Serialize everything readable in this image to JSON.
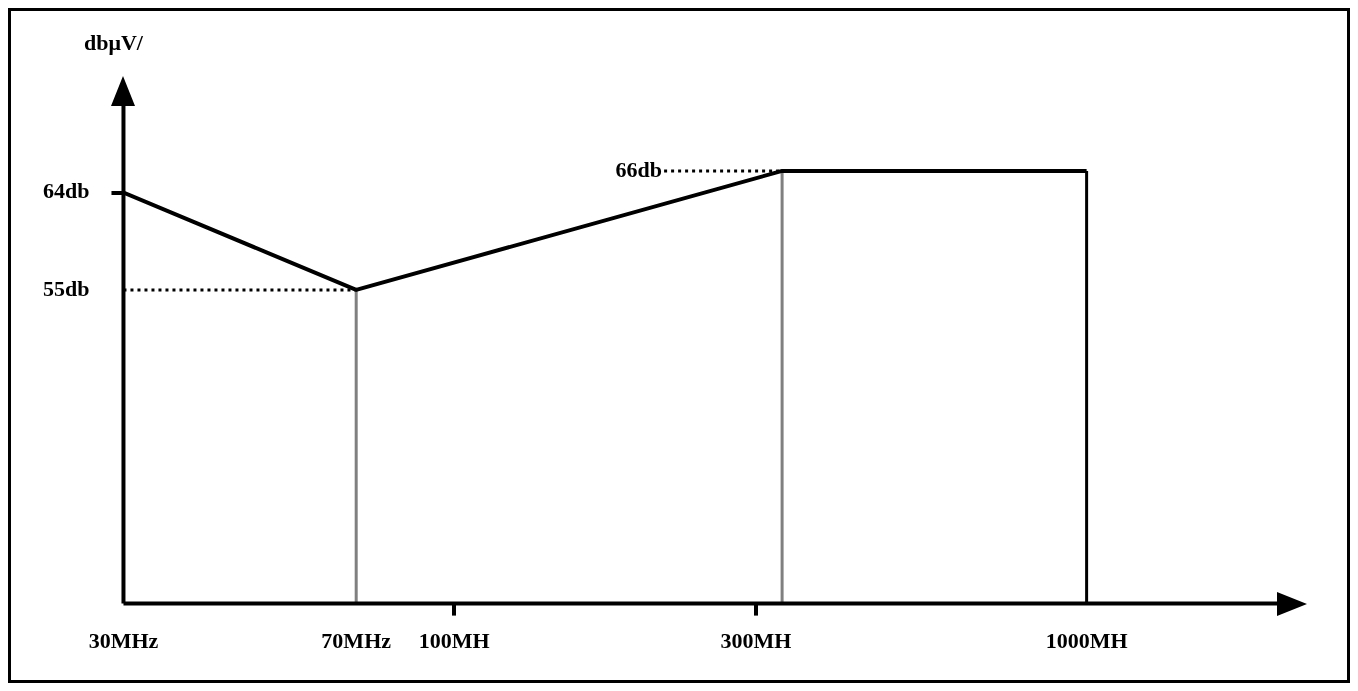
{
  "chart_data": {
    "type": "line",
    "ylabel": "dbμV/",
    "x": [
      30,
      70,
      330,
      1000
    ],
    "series": [
      {
        "color": "#000000",
        "values": [
          64,
          55,
          66,
          66
        ]
      }
    ],
    "log": "x",
    "xlim": [
      30,
      2000
    ],
    "ylim": [
      26,
      72
    ],
    "xticks": [
      {
        "value": 30,
        "label": "30MHz"
      },
      {
        "value": 70,
        "label": "70MHz"
      },
      {
        "value": 100,
        "label": "100MH"
      },
      {
        "value": 300,
        "label": "300MH"
      },
      {
        "value": 1000,
        "label": "1000MH"
      }
    ],
    "yticks": [
      {
        "value": 55,
        "label": "55db"
      },
      {
        "value": 64,
        "label": "64db"
      }
    ],
    "ref_lines": [
      {
        "axis": "y",
        "value": 55,
        "line_style": "dotted",
        "color": "#000000"
      },
      {
        "axis": "x",
        "value": 70,
        "color": "#808080"
      },
      {
        "axis": "x",
        "value": 330,
        "color": "#808080"
      },
      {
        "axis": "x",
        "value": 1000,
        "color": "#000000"
      }
    ],
    "annotations": [
      {
        "text": "66db",
        "x": 330,
        "y": 66
      }
    ],
    "grid": false,
    "legend": false,
    "marker": "none",
    "line_style": "solid"
  }
}
